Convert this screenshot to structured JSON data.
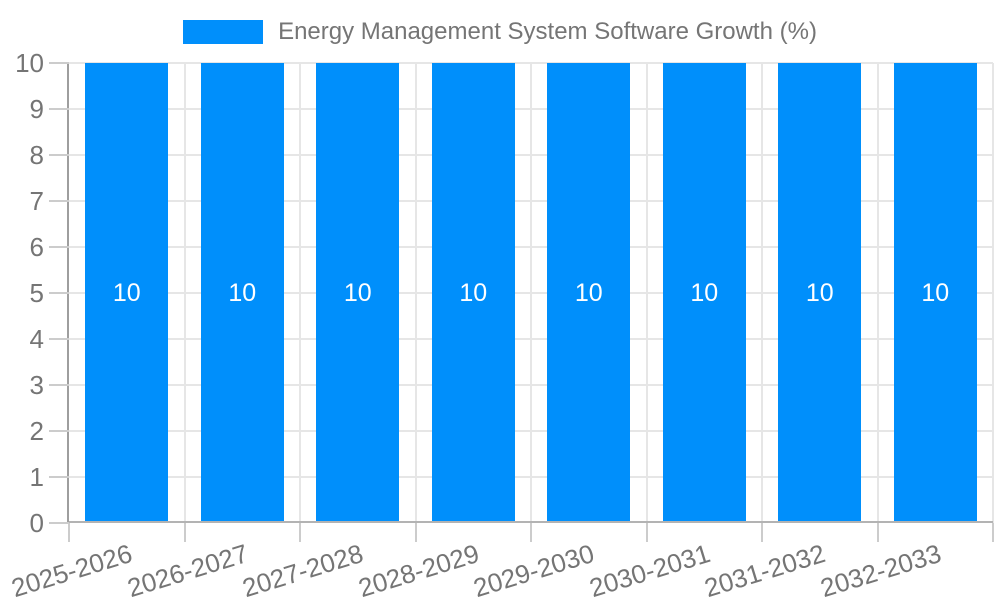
{
  "chart_data": {
    "type": "bar",
    "title": "Energy Management System Software Growth (%)",
    "legend_entries": [
      "Energy Management System Software Growth (%)"
    ],
    "legend_position": "top",
    "categories": [
      "2025-2026",
      "2026-2027",
      "2027-2028",
      "2028-2029",
      "2029-2030",
      "2030-2031",
      "2031-2032",
      "2032-2033"
    ],
    "series": [
      {
        "name": "Energy Management System Software Growth (%)",
        "values": [
          10,
          10,
          10,
          10,
          10,
          10,
          10,
          10
        ],
        "data_labels": [
          "10",
          "10",
          "10",
          "10",
          "10",
          "10",
          "10",
          "10"
        ]
      }
    ],
    "xlabel": "",
    "ylabel": "",
    "ylim": [
      0,
      10
    ],
    "yticks": [
      0,
      1,
      2,
      3,
      4,
      5,
      6,
      7,
      8,
      9,
      10
    ],
    "grid": "on"
  },
  "colors": {
    "bar": "#008FFB",
    "bar_label_text": "#FFFFFF",
    "grid": "#E6E6E6",
    "y_axis_line": "#9E9E9E",
    "x_axis_line": "#B3B3B3",
    "tick": "#CCCCCC",
    "axis_text": "#757575",
    "legend_text": "#757575",
    "background": "#FFFFFF"
  }
}
